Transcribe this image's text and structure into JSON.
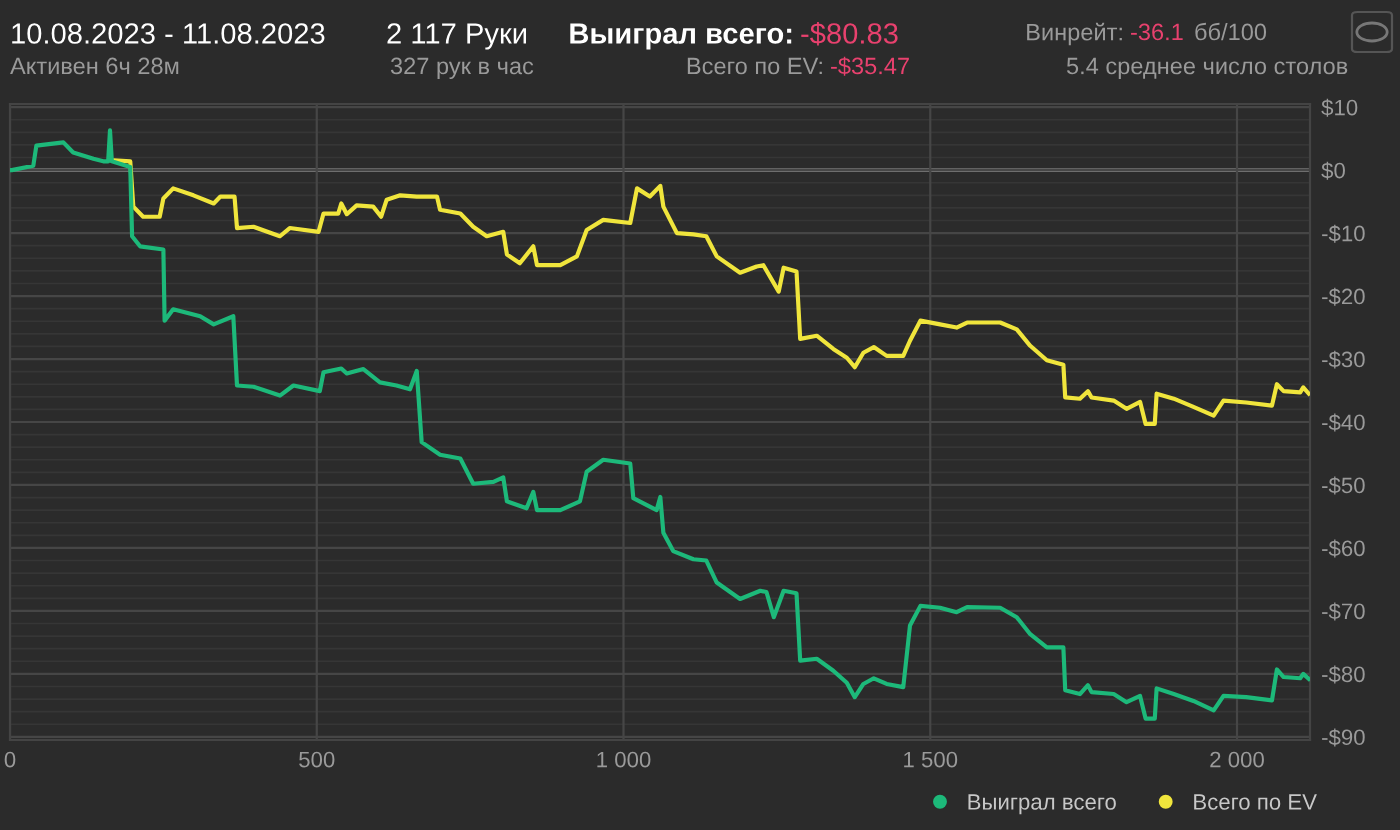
{
  "chart_data": {
    "type": "line",
    "title": "10.08.2023 - 11.08.2023",
    "subtitle": "Активен 6ч 28м",
    "annotations": [
      "2 117 Руки",
      "327 рук в час",
      "Выиграл всего:",
      "-$80.83",
      "Всего по EV:",
      "-$35.47",
      "Винрейт:",
      "-36.1",
      "бб/100",
      "5.4 среднее число столов"
    ],
    "series": [
      {
        "name": "Выиграл всего",
        "color": "#1db97a",
        "x": [
          0,
          3,
          38,
          43,
          87,
          103,
          136,
          152,
          160,
          163,
          166,
          196,
          199,
          212,
          250,
          252,
          266,
          310,
          332,
          364,
          370,
          397,
          440,
          462,
          505,
          511,
          540,
          549,
          576,
          603,
          630,
          652,
          663,
          671,
          701,
          734,
          755,
          788,
          804,
          810,
          842,
          853,
          859,
          897,
          929,
          940,
          967,
          1011,
          1016,
          1054,
          1060,
          1065,
          1081,
          1114,
          1135,
          1152,
          1190,
          1223,
          1233,
          1245,
          1261,
          1282,
          1288,
          1315,
          1342,
          1364,
          1377,
          1391,
          1408,
          1429,
          1456,
          1467,
          1484,
          1516,
          1543,
          1560,
          1614,
          1641,
          1663,
          1690,
          1717,
          1720,
          1744,
          1757,
          1763,
          1799,
          1820,
          1842,
          1851,
          1866,
          1869,
          1897,
          1929,
          1962,
          1978,
          2015,
          2057,
          2065,
          2076,
          2103,
          2108,
          2117
        ],
        "values": [
          0,
          0,
          0.7,
          3.9,
          4.4,
          2.8,
          1.8,
          1.4,
          1.4,
          6.3,
          1.4,
          0.5,
          -10.5,
          -12.1,
          -12.6,
          -23.9,
          -22.1,
          -23.2,
          -24.5,
          -23.2,
          -34.2,
          -34.4,
          -35.8,
          -34.2,
          -35.1,
          -32.1,
          -31.5,
          -32.3,
          -31.6,
          -33.7,
          -34.2,
          -34.8,
          -31.9,
          -43.2,
          -45.2,
          -45.8,
          -49.8,
          -49.5,
          -48.8,
          -52.6,
          -53.7,
          -51.1,
          -54.0,
          -54.0,
          -52.6,
          -47.9,
          -46.0,
          -46.6,
          -52.1,
          -54.0,
          -51.9,
          -57.6,
          -60.5,
          -61.8,
          -62.0,
          -65.5,
          -68.1,
          -66.8,
          -67.0,
          -71.0,
          -66.8,
          -67.2,
          -77.9,
          -77.6,
          -79.5,
          -81.4,
          -83.7,
          -81.6,
          -80.7,
          -81.6,
          -82.1,
          -72.3,
          -69.2,
          -69.5,
          -70.2,
          -69.4,
          -69.5,
          -71.0,
          -73.7,
          -75.8,
          -75.8,
          -82.6,
          -83.2,
          -81.8,
          -82.9,
          -83.2,
          -84.5,
          -83.5,
          -87.1,
          -87.1,
          -82.3,
          -83.2,
          -84.3,
          -85.8,
          -83.5,
          -83.7,
          -84.2,
          -79.3,
          -80.5,
          -80.7,
          -80.0,
          -80.8
        ]
      },
      {
        "name": "Всего по EV",
        "color": "#f0e53c",
        "x": [
          163,
          196,
          201,
          217,
          244,
          250,
          266,
          299,
          332,
          343,
          366,
          370,
          397,
          440,
          456,
          503,
          511,
          535,
          540,
          549,
          565,
          592,
          605,
          614,
          636,
          663,
          696,
          701,
          734,
          755,
          777,
          804,
          810,
          831,
          853,
          859,
          897,
          924,
          940,
          967,
          1011,
          1022,
          1043,
          1060,
          1065,
          1087,
          1114,
          1135,
          1152,
          1190,
          1217,
          1228,
          1253,
          1261,
          1282,
          1288,
          1315,
          1342,
          1364,
          1377,
          1391,
          1408,
          1429,
          1456,
          1467,
          1484,
          1516,
          1543,
          1560,
          1614,
          1641,
          1663,
          1690,
          1717,
          1720,
          1744,
          1757,
          1763,
          1799,
          1820,
          1842,
          1851,
          1866,
          1869,
          1897,
          1929,
          1962,
          1978,
          2015,
          2057,
          2065,
          2076,
          2103,
          2108,
          2117
        ],
        "values": [
          1.6,
          1.4,
          -5.8,
          -7.4,
          -7.4,
          -4.5,
          -2.9,
          -4.0,
          -5.3,
          -4.2,
          -4.2,
          -9.2,
          -9.0,
          -10.5,
          -9.2,
          -9.8,
          -6.9,
          -6.9,
          -5.3,
          -7.0,
          -5.6,
          -5.8,
          -7.4,
          -4.7,
          -4.0,
          -4.2,
          -4.2,
          -6.3,
          -6.9,
          -9.0,
          -10.5,
          -9.8,
          -13.4,
          -14.8,
          -12.1,
          -15.1,
          -15.1,
          -13.7,
          -9.5,
          -7.9,
          -8.4,
          -2.9,
          -4.2,
          -2.5,
          -5.8,
          -10.0,
          -10.2,
          -10.5,
          -13.7,
          -16.3,
          -15.3,
          -15.1,
          -19.3,
          -15.5,
          -16.1,
          -26.8,
          -26.3,
          -28.4,
          -29.8,
          -31.3,
          -29.0,
          -28.1,
          -29.5,
          -29.5,
          -27.1,
          -23.9,
          -24.5,
          -25.0,
          -24.2,
          -24.2,
          -25.3,
          -27.9,
          -30.2,
          -30.9,
          -36.1,
          -36.3,
          -35.1,
          -36.1,
          -36.6,
          -37.9,
          -36.8,
          -40.3,
          -40.3,
          -35.5,
          -36.3,
          -37.6,
          -39.0,
          -36.6,
          -36.9,
          -37.4,
          -34.0,
          -35.1,
          -35.3,
          -34.5,
          -35.5
        ]
      }
    ],
    "xlim": [
      0,
      2119
    ],
    "xticks": [
      0,
      500,
      {
        "value": 1000,
        "label": "1 000"
      },
      {
        "value": 1500,
        "label": "1 500"
      },
      {
        "value": 2000,
        "label": "2 000"
      }
    ],
    "ylim": [
      -90.5,
      10.5
    ],
    "yticks": [
      {
        "value": 10,
        "label": "$10"
      },
      {
        "value": 0,
        "label": "$0"
      },
      {
        "value": -10,
        "label": "-$10"
      },
      {
        "value": -20,
        "label": "-$20"
      },
      {
        "value": -30,
        "label": "-$30"
      },
      {
        "value": -40,
        "label": "-$40"
      },
      {
        "value": -50,
        "label": "-$50"
      },
      {
        "value": -60,
        "label": "-$60"
      },
      {
        "value": -70,
        "label": "-$70"
      },
      {
        "value": -80,
        "label": "-$80"
      },
      {
        "value": -90,
        "label": "-$90"
      }
    ],
    "ref_lines": [
      {
        "axis": "y",
        "value": 0,
        "color": "#9a9a9a"
      }
    ],
    "grid": true,
    "legend": "bottom right",
    "marker": "none",
    "line_style": "solid"
  }
}
